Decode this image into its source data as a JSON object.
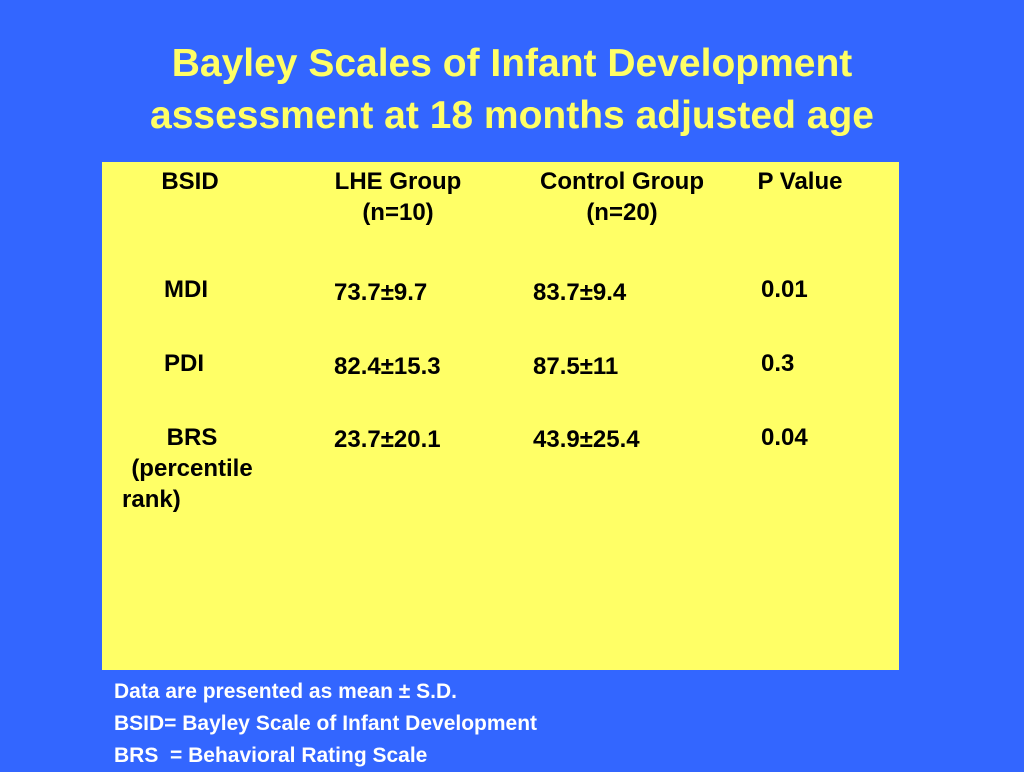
{
  "title": {
    "line1": "Bayley Scales of Infant Development",
    "line2": "assessment at 18 months adjusted age"
  },
  "table": {
    "headers": {
      "bsid": "BSID",
      "lhe_line1": "LHE Group",
      "lhe_line2": "(n=10)",
      "control_line1": "Control Group",
      "control_line2": "(n=20)",
      "pvalue": "P Value"
    },
    "rows": [
      {
        "label": "MDI",
        "lhe": "73.7±9.7",
        "control": "83.7±9.4",
        "p": "0.01"
      },
      {
        "label": "PDI",
        "lhe": "82.4±15.3",
        "control": "87.5±11",
        "p": "0.3"
      },
      {
        "label": "BRS",
        "label_line2": "(percentile",
        "label_line3": "rank)",
        "lhe": "23.7±20.1",
        "control": "43.9±25.4",
        "p": "0.04"
      }
    ]
  },
  "footnotes": [
    "Data are presented as mean ± S.D.",
    "BSID= Bayley Scale of Infant Development",
    "BRS  = Behavioral Rating Scale"
  ],
  "colors": {
    "background": "#3366ff",
    "title": "#ffff66",
    "panel": "#ffff66",
    "table_text": "#000000",
    "footnote_text": "#ffffff"
  }
}
